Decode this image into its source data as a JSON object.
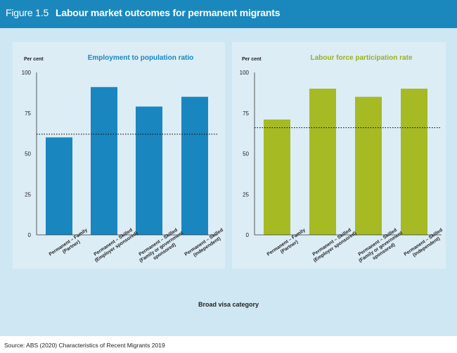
{
  "figure": {
    "label": "Figure 1.5",
    "title": "Labour market outcomes for permanent migrants"
  },
  "xlabel": "Broad visa category",
  "source": "Source: ABS (2020) Characteristics of Recent Migrants 2019",
  "colors": {
    "header": "#1b88bd",
    "panel_background": "#cfe7f2",
    "employment_bars": "#1a86bf",
    "participation_bars": "#a6ba24",
    "employment_title": "#1a86bf",
    "participation_title": "#9ab01e"
  },
  "chart_data": [
    {
      "type": "bar",
      "title": "Employment to population ratio",
      "ylabel": "Per cent",
      "ylim": [
        0,
        100
      ],
      "yticks": [
        0,
        25,
        50,
        75,
        100
      ],
      "categories": [
        [
          "Permanent – Family",
          "(Partner)"
        ],
        [
          "Permanent – Skilled",
          "(Employer sponsored)"
        ],
        [
          "Permanent – Skilled",
          "(Family or government",
          "sponsored)"
        ],
        [
          "Permanent – Skilled",
          "(Independent)"
        ]
      ],
      "values": [
        60,
        91,
        79,
        85
      ],
      "reference_line": 62,
      "reference_style": "dotted"
    },
    {
      "type": "bar",
      "title": "Labour force participation rate",
      "ylabel": "Per cent",
      "ylim": [
        0,
        100
      ],
      "yticks": [
        0,
        25,
        50,
        75,
        100
      ],
      "categories": [
        [
          "Permanent – Family",
          "(Partner)"
        ],
        [
          "Permanent – Skilled",
          "(Employer sponsored)"
        ],
        [
          "Permanent – Skilled",
          "(Family or government",
          "sponsored)"
        ],
        [
          "Permanent – Skilled",
          "(Independent)"
        ]
      ],
      "values": [
        71,
        90,
        85,
        90
      ],
      "reference_line": 66,
      "reference_style": "dotted"
    }
  ]
}
